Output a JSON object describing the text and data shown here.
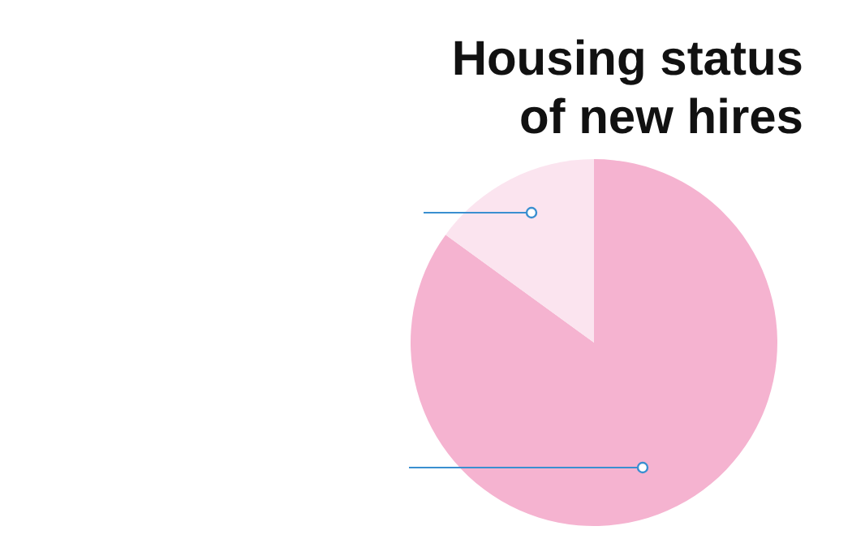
{
  "chart_data": {
    "type": "pie",
    "title": "Housing status\nof new hires",
    "categories": [
      null,
      null
    ],
    "values": [
      85,
      15
    ],
    "colors": [
      "#f5b3d0",
      "#fbe4ef"
    ]
  }
}
